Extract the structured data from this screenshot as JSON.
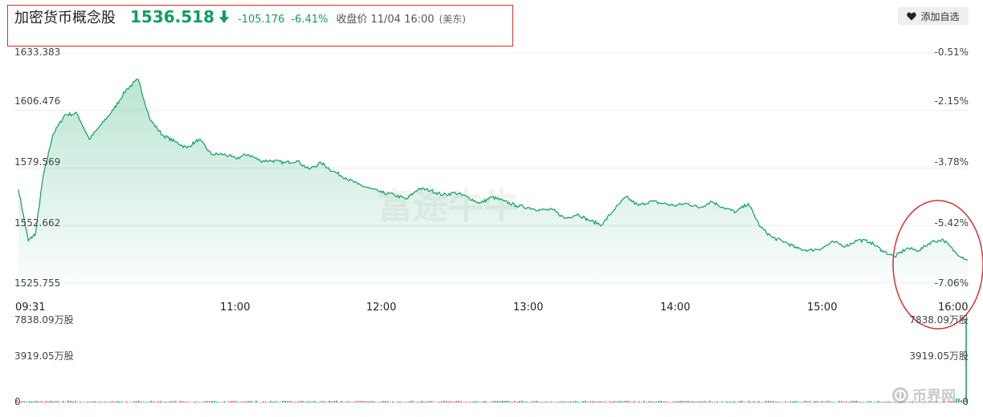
{
  "header": {
    "name": "加密货币概念股",
    "price": "1536.518",
    "change": "-105.176",
    "change_pct": "-6.41%",
    "status": "收盘价 11/04 16:00",
    "market": "(美东)"
  },
  "watchlist_button": {
    "label": "添加自选",
    "icon": "heart-icon"
  },
  "colors": {
    "line": "#0d9f60",
    "down": "#0d9f60",
    "up": "#e05555",
    "annotation": "#d93030"
  },
  "watermarks": {
    "center": "富途牛牛",
    "corner": "币界网"
  },
  "chart_data": [
    {
      "type": "area",
      "x_ticks": [
        "09:31",
        "11:00",
        "12:00",
        "13:00",
        "14:00",
        "15:00",
        "16:00"
      ],
      "y_ticks_left": [
        "1633.383",
        "1606.476",
        "1579.569",
        "1552.662",
        "1525.755"
      ],
      "y_ticks_right": [
        "-0.51%",
        "-2.15%",
        "-3.78%",
        "-5.42%",
        "-7.06%"
      ],
      "ylim": [
        1525.755,
        1633.383
      ],
      "grid": true,
      "series": [
        {
          "x": [
            "09:31",
            "09:35",
            "09:38",
            "09:41",
            "09:45",
            "09:50",
            "09:55",
            "10:00",
            "10:05",
            "10:10",
            "10:15",
            "10:20",
            "10:25",
            "10:30",
            "10:35",
            "10:40",
            "10:45",
            "10:50",
            "10:55",
            "11:00",
            "11:05",
            "11:10",
            "11:15",
            "11:20",
            "11:25",
            "11:30",
            "11:35",
            "11:40",
            "11:45",
            "11:50",
            "11:55",
            "12:00",
            "12:05",
            "12:10",
            "12:15",
            "12:20",
            "12:25",
            "12:30",
            "12:35",
            "12:40",
            "12:45",
            "12:50",
            "12:55",
            "13:00",
            "13:05",
            "13:10",
            "13:15",
            "13:20",
            "13:25",
            "13:30",
            "13:35",
            "13:40",
            "13:45",
            "13:50",
            "13:55",
            "14:00",
            "14:05",
            "14:10",
            "14:15",
            "14:20",
            "14:25",
            "14:30",
            "14:35",
            "14:40",
            "14:45",
            "14:50",
            "14:55",
            "15:00",
            "15:05",
            "15:10",
            "15:15",
            "15:20",
            "15:25",
            "15:30",
            "15:35",
            "15:40",
            "15:45",
            "15:50",
            "15:55",
            "16:00"
          ],
          "values": [
            1569.5,
            1545.5,
            1549,
            1575,
            1595,
            1604.5,
            1605,
            1593,
            1600,
            1607,
            1616,
            1621,
            1602,
            1595,
            1592,
            1589,
            1593,
            1586,
            1586,
            1584,
            1586,
            1583,
            1583,
            1582,
            1583,
            1579,
            1582,
            1578,
            1575,
            1572,
            1570,
            1568,
            1567,
            1565,
            1570,
            1569,
            1567,
            1568,
            1566,
            1563,
            1566,
            1564,
            1562,
            1561,
            1560,
            1560,
            1556,
            1558,
            1555,
            1553,
            1560,
            1566,
            1562,
            1564,
            1563,
            1562,
            1563,
            1561,
            1564,
            1561,
            1559,
            1563,
            1552,
            1547,
            1545,
            1542,
            1541,
            1542,
            1545,
            1543,
            1546,
            1545,
            1541,
            1538,
            1542,
            1541,
            1545,
            1546,
            1540,
            1536.5
          ]
        }
      ]
    },
    {
      "type": "bar",
      "ylabel_ticks": [
        "7838.09万股",
        "3919.05万股",
        "0"
      ],
      "ylim": [
        0,
        7838.09
      ],
      "unit": "万股",
      "opening_volume": 260,
      "closing_volume": 7838.09,
      "typical_volume": 120
    }
  ],
  "annotations": {
    "header_box": "rectangle",
    "close_circle": "ellipse"
  }
}
